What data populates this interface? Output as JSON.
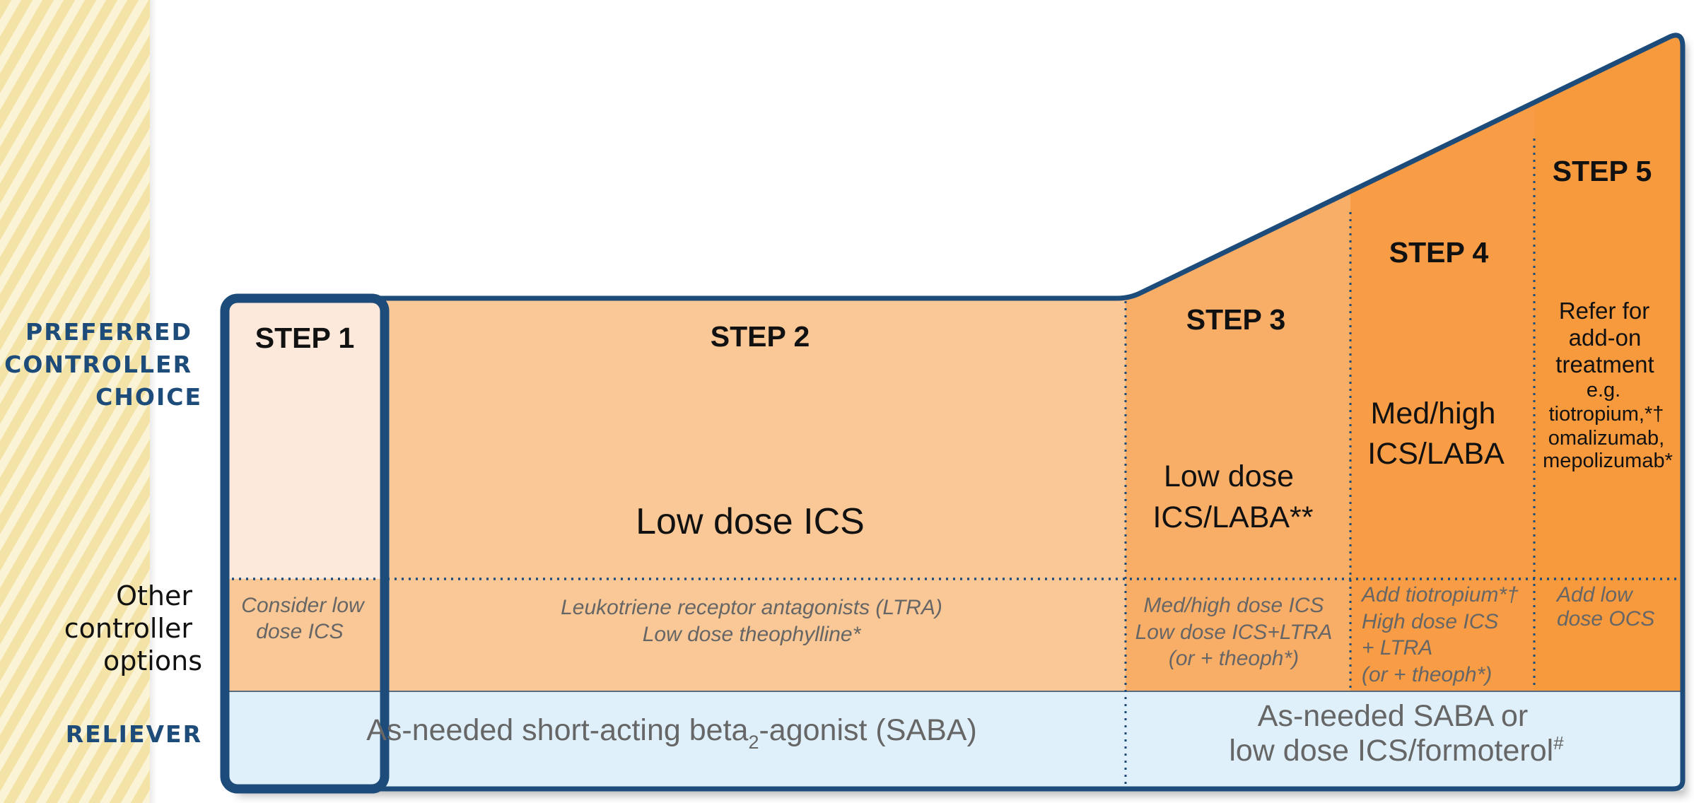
{
  "row_labels": {
    "preferred": [
      "PREFERRED",
      "CONTROLLER",
      "CHOICE"
    ],
    "other": [
      "Other",
      "controller",
      "options"
    ],
    "reliever": "RELIEVER"
  },
  "steps": {
    "step1": {
      "title": "STEP 1",
      "other": [
        "Consider low",
        "dose ICS"
      ]
    },
    "step2": {
      "title": "STEP 2",
      "preferred": "Low dose ICS",
      "other": [
        "Leukotriene receptor antagonists (LTRA)",
        "Low dose theophylline*"
      ]
    },
    "step3": {
      "title": "STEP 3",
      "preferred": [
        "Low dose",
        "ICS/LABA**"
      ],
      "other": [
        "Med/high dose ICS",
        "Low dose ICS+LTRA",
        "(or + theoph*)"
      ]
    },
    "step4": {
      "title": "STEP 4",
      "preferred": [
        "Med/high",
        "ICS/LABA"
      ],
      "other": [
        "Add tiotropium*†",
        "High dose ICS",
        "+ LTRA",
        "(or + theoph*)"
      ]
    },
    "step5": {
      "title": "STEP 5",
      "preferred": [
        "Refer for",
        "add-on",
        "treatment",
        "e.g.",
        "tiotropium,*†",
        "omalizumab,",
        "mepolizumab*"
      ],
      "other": [
        "Add low",
        "dose OCS"
      ]
    }
  },
  "reliever": {
    "left": {
      "prefix": "As-needed short-acting beta",
      "subscript": "2",
      "suffix": "-agonist (SABA)"
    },
    "right": {
      "line1": "As-needed SABA or",
      "line2": "low dose ICS/formoterol",
      "superscript": "#"
    }
  },
  "colors": {
    "step1": "#fde9dc",
    "step2": "#fac896",
    "step3": "#f9ae68",
    "step4": "#f89d45",
    "step5": "#f79a3e",
    "reliever": "#dff0fa",
    "outline": "#1d4b7a",
    "muted_text": "#666666"
  }
}
